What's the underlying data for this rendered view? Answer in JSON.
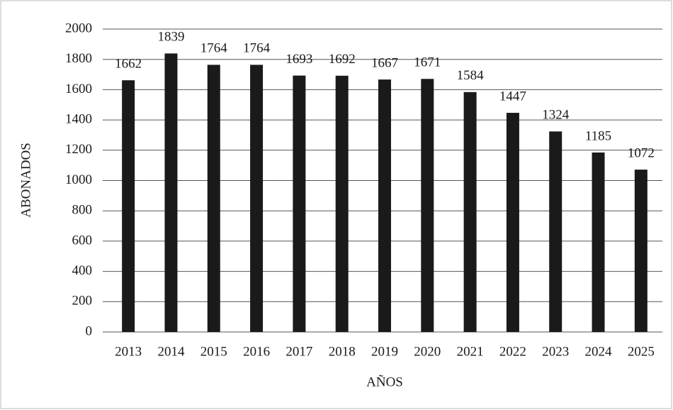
{
  "chart_data": {
    "type": "bar",
    "x_label": "AÑOS",
    "y_label": "ABONADOS",
    "categories": [
      "2013",
      "2014",
      "2015",
      "2016",
      "2017",
      "2018",
      "2019",
      "2020",
      "2021",
      "2022",
      "2023",
      "2024",
      "2025"
    ],
    "values": [
      1662,
      1839,
      1764,
      1764,
      1693,
      1692,
      1667,
      1671,
      1584,
      1447,
      1324,
      1185,
      1072
    ],
    "color": "#1a1a1a",
    "ylim": [
      0,
      2000
    ],
    "yticks": [
      0,
      200,
      400,
      600,
      800,
      1000,
      1200,
      1400,
      1600,
      1800,
      2000
    ],
    "grid": true
  }
}
